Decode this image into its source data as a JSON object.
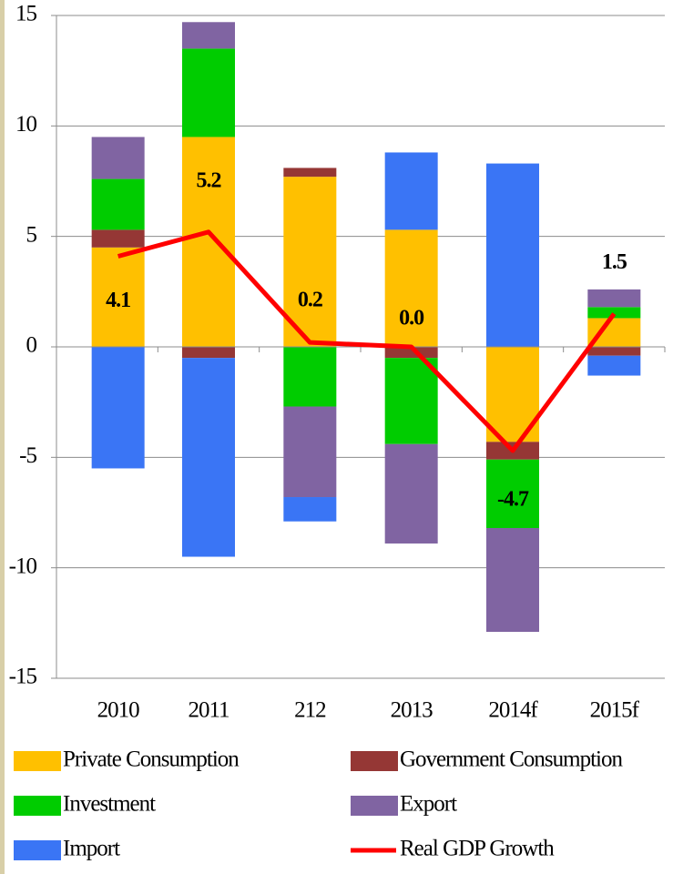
{
  "chart_data": {
    "type": "bar",
    "stacked": true,
    "categories": [
      "2010",
      "2011",
      "212",
      "2013",
      "2014f",
      "2015f"
    ],
    "series": [
      {
        "name": "Private Consumption",
        "color": "#ffc000",
        "values": [
          4.5,
          9.5,
          7.7,
          5.3,
          -4.3,
          1.3
        ]
      },
      {
        "name": "Government Consumption",
        "color": "#953735",
        "values": [
          0.8,
          -0.5,
          0.4,
          -0.5,
          -0.8,
          -0.4
        ]
      },
      {
        "name": "Investment",
        "color": "#00cc00",
        "values": [
          2.3,
          4.0,
          -2.7,
          -3.9,
          -3.1,
          0.5
        ]
      },
      {
        "name": "Export",
        "color": "#8064a2",
        "values": [
          1.9,
          1.2,
          -4.1,
          -4.5,
          -4.7,
          0.8
        ]
      },
      {
        "name": "Import",
        "color": "#3a75f5",
        "values": [
          -5.5,
          -9.0,
          -1.1,
          3.5,
          8.3,
          -0.9
        ]
      },
      {
        "name": "Real GDP Growth",
        "type": "line",
        "color": "#ff0000",
        "values": [
          4.1,
          5.2,
          0.2,
          0.0,
          -4.7,
          1.5
        ],
        "value_labels": [
          "4.1",
          "5.2",
          "0.2",
          "0.0",
          "-4.7",
          "1.5"
        ]
      }
    ],
    "ylim": [
      -15,
      15
    ],
    "yticks": [
      -15,
      -10,
      -5,
      0,
      5,
      10,
      15
    ],
    "grid": true,
    "legend": "bottom"
  }
}
